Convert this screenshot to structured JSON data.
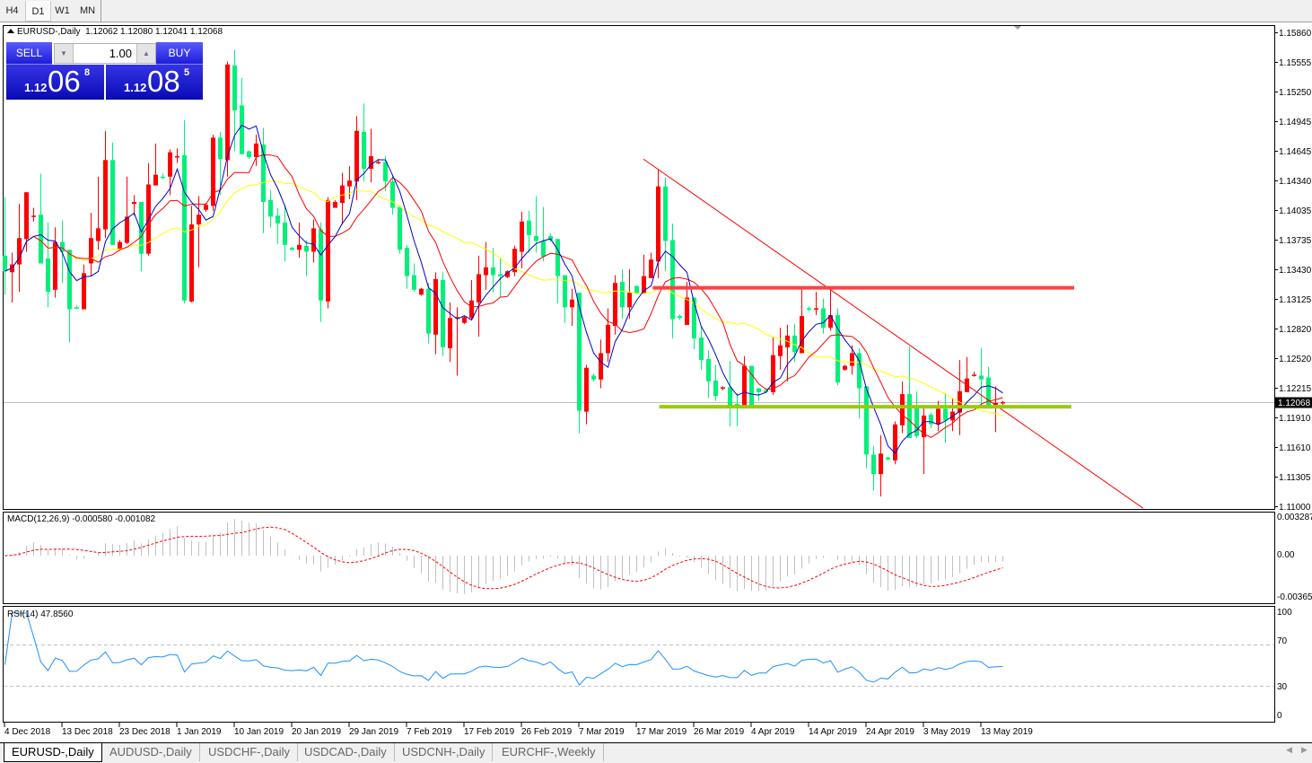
{
  "timeframes": [
    "H4",
    "D1",
    "W1",
    "MN"
  ],
  "active_timeframe": "D1",
  "chart_header": {
    "symbol": "EURUSD-,Daily",
    "ohlc": "1.12062 1.12080 1.12041 1.12068"
  },
  "trade_panel": {
    "sell_label": "SELL",
    "buy_label": "BUY",
    "lot_value": "1.00",
    "sell_price": {
      "prefix": "1.12",
      "big": "06",
      "sup": "8"
    },
    "buy_price": {
      "prefix": "1.12",
      "big": "08",
      "sup": "5"
    }
  },
  "colors": {
    "bull": "#ff0000",
    "bear": "#00f07a",
    "ma_fast": "#0000cc",
    "ma_mid": "#ff0000",
    "ma_slow": "#ffff00",
    "macd_hist": "#c0c0c0",
    "macd_signal": "#ff0000",
    "rsi": "#1e90ff",
    "resistance": "#ff4040",
    "support": "#99cc00",
    "trendline": "#ff0000"
  },
  "chart_data": {
    "type": "candlestick",
    "symbol": "EURUSD-",
    "timeframe": "Daily",
    "ylim": [
      1.11,
      1.1586
    ],
    "y_tick_labels": [
      "1.15860",
      "1.15555",
      "1.15250",
      "1.14945",
      "1.14645",
      "1.14340",
      "1.14035",
      "1.13735",
      "1.13430",
      "1.13125",
      "1.12820",
      "1.12520",
      "1.12215",
      "1.11910",
      "1.11610",
      "1.11305",
      "1.11000"
    ],
    "current_price": "1.12068",
    "x_ticks": [
      {
        "bar": 0,
        "label": "4 Dec 2018"
      },
      {
        "bar": 8,
        "label": "13 Dec 2018"
      },
      {
        "bar": 16,
        "label": "23 Dec 2018"
      },
      {
        "bar": 24,
        "label": "1 Jan 2019"
      },
      {
        "bar": 32,
        "label": "10 Jan 2019"
      },
      {
        "bar": 40,
        "label": "20 Jan 2019"
      },
      {
        "bar": 48,
        "label": "29 Jan 2019"
      },
      {
        "bar": 56,
        "label": "7 Feb 2019"
      },
      {
        "bar": 64,
        "label": "17 Feb 2019"
      },
      {
        "bar": 72,
        "label": "26 Feb 2019"
      },
      {
        "bar": 80,
        "label": "7 Mar 2019"
      },
      {
        "bar": 88,
        "label": "17 Mar 2019"
      },
      {
        "bar": 96,
        "label": "26 Mar 2019"
      },
      {
        "bar": 104,
        "label": "4 Apr 2019"
      },
      {
        "bar": 112,
        "label": "14 Apr 2019"
      },
      {
        "bar": 120,
        "label": "24 Apr 2019"
      },
      {
        "bar": 128,
        "label": "3 May 2019"
      },
      {
        "bar": 136,
        "label": "13 May 2019"
      }
    ],
    "ohlc": [
      [
        1.1357,
        1.1417,
        1.1317,
        1.1341
      ],
      [
        1.134,
        1.136,
        1.1309,
        1.1348
      ],
      [
        1.1348,
        1.141,
        1.132,
        1.1375
      ],
      [
        1.1374,
        1.1422,
        1.1361,
        1.1422
      ],
      [
        1.1397,
        1.1406,
        1.1392,
        1.1398
      ],
      [
        1.1399,
        1.1441,
        1.1349,
        1.1349
      ],
      [
        1.1354,
        1.1391,
        1.1304,
        1.132
      ],
      [
        1.1322,
        1.1386,
        1.1314,
        1.1371
      ],
      [
        1.1371,
        1.1393,
        1.1329,
        1.1361
      ],
      [
        1.1363,
        1.1363,
        1.1268,
        1.1302
      ],
      [
        1.1304,
        1.1306,
        1.1302,
        1.1303
      ],
      [
        1.1302,
        1.1348,
        1.1302,
        1.1339
      ],
      [
        1.1349,
        1.1401,
        1.1336,
        1.1375
      ],
      [
        1.1372,
        1.1438,
        1.1363,
        1.1385
      ],
      [
        1.1384,
        1.1485,
        1.1375,
        1.1455
      ],
      [
        1.1455,
        1.1473,
        1.1368,
        1.1368
      ],
      [
        1.1364,
        1.1373,
        1.1362,
        1.1371
      ],
      [
        1.137,
        1.1438,
        1.1369,
        1.1397
      ],
      [
        1.141,
        1.1419,
        1.1398,
        1.1412
      ],
      [
        1.1412,
        1.1412,
        1.1341,
        1.1359
      ],
      [
        1.1359,
        1.1452,
        1.1357,
        1.143
      ],
      [
        1.1429,
        1.1472,
        1.1429,
        1.144
      ],
      [
        1.1438,
        1.1441,
        1.1435,
        1.1437
      ],
      [
        1.1438,
        1.1466,
        1.1419,
        1.1463
      ],
      [
        1.1459,
        1.1467,
        1.1452,
        1.1459
      ],
      [
        1.146,
        1.1496,
        1.1308,
        1.1311
      ],
      [
        1.131,
        1.1408,
        1.1309,
        1.1389
      ],
      [
        1.1389,
        1.1418,
        1.1345,
        1.1399
      ],
      [
        1.1404,
        1.1411,
        1.1402,
        1.1409
      ],
      [
        1.1408,
        1.1481,
        1.1403,
        1.1478
      ],
      [
        1.1478,
        1.1484,
        1.1419,
        1.1456
      ],
      [
        1.1455,
        1.1556,
        1.1438,
        1.1553
      ],
      [
        1.1552,
        1.1568,
        1.1464,
        1.1506
      ],
      [
        1.1511,
        1.1539,
        1.1461,
        1.1461
      ],
      [
        1.1464,
        1.1465,
        1.1456,
        1.1458
      ],
      [
        1.1458,
        1.1481,
        1.1449,
        1.1472
      ],
      [
        1.1471,
        1.1488,
        1.138,
        1.1412
      ],
      [
        1.1414,
        1.1424,
        1.1386,
        1.1397
      ],
      [
        1.1398,
        1.1406,
        1.1369,
        1.139
      ],
      [
        1.1391,
        1.1409,
        1.1351,
        1.1368
      ],
      [
        1.1365,
        1.1366,
        1.1362,
        1.1363
      ],
      [
        1.1363,
        1.1391,
        1.1355,
        1.1368
      ],
      [
        1.1367,
        1.1373,
        1.1336,
        1.1361
      ],
      [
        1.1361,
        1.1394,
        1.135,
        1.1385
      ],
      [
        1.1384,
        1.1391,
        1.1289,
        1.1311
      ],
      [
        1.131,
        1.1417,
        1.1303,
        1.1414
      ],
      [
        1.1406,
        1.1414,
        1.1406,
        1.1412
      ],
      [
        1.1411,
        1.1442,
        1.1389,
        1.1429
      ],
      [
        1.1428,
        1.1449,
        1.1415,
        1.1434
      ],
      [
        1.1433,
        1.15,
        1.1414,
        1.1485
      ],
      [
        1.1484,
        1.1513,
        1.1433,
        1.1446
      ],
      [
        1.1446,
        1.1487,
        1.1432,
        1.1459
      ],
      [
        1.1453,
        1.1456,
        1.1451,
        1.1453
      ],
      [
        1.1453,
        1.1459,
        1.1423,
        1.1433
      ],
      [
        1.1433,
        1.144,
        1.1399,
        1.1406
      ],
      [
        1.1407,
        1.1407,
        1.1359,
        1.1363
      ],
      [
        1.1365,
        1.1368,
        1.1323,
        1.1336
      ],
      [
        1.1337,
        1.1349,
        1.132,
        1.1322
      ],
      [
        1.1317,
        1.1324,
        1.1316,
        1.1323
      ],
      [
        1.1323,
        1.1329,
        1.1267,
        1.1277
      ],
      [
        1.1276,
        1.134,
        1.1256,
        1.1333
      ],
      [
        1.1332,
        1.134,
        1.1254,
        1.1263
      ],
      [
        1.1262,
        1.1309,
        1.1248,
        1.1293
      ],
      [
        1.1294,
        1.1304,
        1.1234,
        1.1294
      ],
      [
        1.1288,
        1.1295,
        1.1287,
        1.1294
      ],
      [
        1.1293,
        1.1332,
        1.1291,
        1.1311
      ],
      [
        1.1309,
        1.1357,
        1.1274,
        1.1338
      ],
      [
        1.1337,
        1.1371,
        1.1322,
        1.1345
      ],
      [
        1.1345,
        1.1365,
        1.1319,
        1.1337
      ],
      [
        1.1338,
        1.1354,
        1.1314,
        1.1336
      ],
      [
        1.1335,
        1.1342,
        1.1334,
        1.1341
      ],
      [
        1.134,
        1.1367,
        1.1336,
        1.1364
      ],
      [
        1.1361,
        1.1402,
        1.1344,
        1.1392
      ],
      [
        1.1393,
        1.1403,
        1.136,
        1.1378
      ],
      [
        1.1377,
        1.1418,
        1.136,
        1.1372
      ],
      [
        1.1372,
        1.1407,
        1.1351,
        1.1356
      ],
      [
        1.1377,
        1.138,
        1.1371,
        1.1373
      ],
      [
        1.1374,
        1.1374,
        1.1308,
        1.1336
      ],
      [
        1.1337,
        1.1337,
        1.1288,
        1.1304
      ],
      [
        1.1304,
        1.1323,
        1.1285,
        1.1312
      ],
      [
        1.1319,
        1.1319,
        1.1175,
        1.1198
      ],
      [
        1.1197,
        1.1245,
        1.1184,
        1.1242
      ],
      [
        1.1234,
        1.1236,
        1.1228,
        1.123
      ],
      [
        1.123,
        1.1271,
        1.1221,
        1.1257
      ],
      [
        1.1257,
        1.1303,
        1.1248,
        1.1286
      ],
      [
        1.1285,
        1.1337,
        1.1276,
        1.1329
      ],
      [
        1.133,
        1.1343,
        1.1292,
        1.1304
      ],
      [
        1.1304,
        1.1343,
        1.1292,
        1.1319
      ],
      [
        1.1326,
        1.1326,
        1.1318,
        1.1318
      ],
      [
        1.1318,
        1.1358,
        1.1318,
        1.1336
      ],
      [
        1.1334,
        1.136,
        1.1334,
        1.1353
      ],
      [
        1.1351,
        1.1446,
        1.1334,
        1.1428
      ],
      [
        1.1428,
        1.1437,
        1.1341,
        1.1372
      ],
      [
        1.1373,
        1.139,
        1.1272,
        1.1292
      ],
      [
        1.1295,
        1.1297,
        1.1291,
        1.1293
      ],
      [
        1.1286,
        1.133,
        1.1286,
        1.1314
      ],
      [
        1.1314,
        1.1314,
        1.1261,
        1.1272
      ],
      [
        1.1273,
        1.1285,
        1.124,
        1.125
      ],
      [
        1.1251,
        1.126,
        1.1211,
        1.1228
      ],
      [
        1.1229,
        1.1245,
        1.1208,
        1.1213
      ],
      [
        1.1221,
        1.1223,
        1.1219,
        1.1222
      ],
      [
        1.1222,
        1.1249,
        1.1182,
        1.1203
      ],
      [
        1.1205,
        1.1216,
        1.1182,
        1.1203
      ],
      [
        1.1203,
        1.1254,
        1.1203,
        1.1244
      ],
      [
        1.1244,
        1.1244,
        1.1203,
        1.1203
      ],
      [
        1.1221,
        1.1221,
        1.1208,
        1.1217
      ],
      [
        1.1219,
        1.1221,
        1.1216,
        1.1217
      ],
      [
        1.1217,
        1.1273,
        1.1214,
        1.1255
      ],
      [
        1.1254,
        1.1283,
        1.124,
        1.1265
      ],
      [
        1.1263,
        1.1286,
        1.1228,
        1.1275
      ],
      [
        1.1275,
        1.1287,
        1.1248,
        1.1258
      ],
      [
        1.1257,
        1.1323,
        1.1257,
        1.1295
      ],
      [
        1.1303,
        1.1305,
        1.13,
        1.1302
      ],
      [
        1.1303,
        1.132,
        1.1296,
        1.1303
      ],
      [
        1.1303,
        1.1313,
        1.1277,
        1.1283
      ],
      [
        1.1283,
        1.1323,
        1.128,
        1.1296
      ],
      [
        1.1296,
        1.1303,
        1.1224,
        1.1227
      ],
      [
        1.124,
        1.1245,
        1.1239,
        1.1244
      ],
      [
        1.1244,
        1.1265,
        1.1235,
        1.1257
      ],
      [
        1.1257,
        1.1262,
        1.119,
        1.1221
      ],
      [
        1.1223,
        1.1223,
        1.1139,
        1.1153
      ],
      [
        1.1153,
        1.1162,
        1.1116,
        1.1133
      ],
      [
        1.1133,
        1.1173,
        1.111,
        1.1154
      ],
      [
        1.115,
        1.1151,
        1.1147,
        1.1148
      ],
      [
        1.1147,
        1.1187,
        1.1143,
        1.1184
      ],
      [
        1.1183,
        1.1228,
        1.1175,
        1.1215
      ],
      [
        1.1215,
        1.1264,
        1.117,
        1.117
      ],
      [
        1.1203,
        1.1218,
        1.117,
        1.1172
      ],
      [
        1.1171,
        1.1203,
        1.1133,
        1.1193
      ],
      [
        1.1194,
        1.1196,
        1.118,
        1.1184
      ],
      [
        1.1184,
        1.1208,
        1.1177,
        1.12
      ],
      [
        1.12,
        1.1216,
        1.1165,
        1.1188
      ],
      [
        1.1188,
        1.1211,
        1.1177,
        1.1197
      ],
      [
        1.1196,
        1.125,
        1.1173,
        1.1218
      ],
      [
        1.1217,
        1.1253,
        1.1217,
        1.1231
      ],
      [
        1.1235,
        1.1238,
        1.1233,
        1.1235
      ],
      [
        1.1234,
        1.1262,
        1.1202,
        1.123
      ],
      [
        1.1232,
        1.1243,
        1.12,
        1.1203
      ],
      [
        1.1204,
        1.1223,
        1.1176,
        1.1206
      ],
      [
        1.12062,
        1.1208,
        1.12041,
        1.12068
      ]
    ],
    "objects": {
      "trendline": {
        "from": {
          "bar": 89,
          "price": 1.1456
        },
        "to": {
          "bar": 158.6,
          "price": 1.1098
        }
      },
      "resistance": {
        "price": 1.1324,
        "from_bar": 90.3,
        "to_bar": 149
      },
      "support": {
        "price": 1.1202,
        "from_bar": 91.2,
        "to_bar": 148.6
      }
    },
    "indicators": {
      "macd": {
        "label": "MACD(12,26,9) -0.000580 -0.001082",
        "ylim": [
          -0.003659,
          0.003287
        ],
        "tick_labels": [
          "0.003287",
          "0.00",
          "-0.003659"
        ]
      },
      "rsi": {
        "label": "RSI(14) 47.8560",
        "ylim": [
          0,
          100
        ],
        "levels": [
          30,
          70
        ],
        "tick_labels": [
          "100",
          "70",
          "30",
          "0"
        ]
      }
    }
  },
  "bottom_tabs": [
    "EURUSD-,Daily",
    "AUDUSD-,Daily",
    "USDCHF-,Daily",
    "USDCAD-,Daily",
    "USDCNH-,Daily",
    "EURCHF-,Weekly"
  ],
  "active_tab": "EURUSD-,Daily"
}
